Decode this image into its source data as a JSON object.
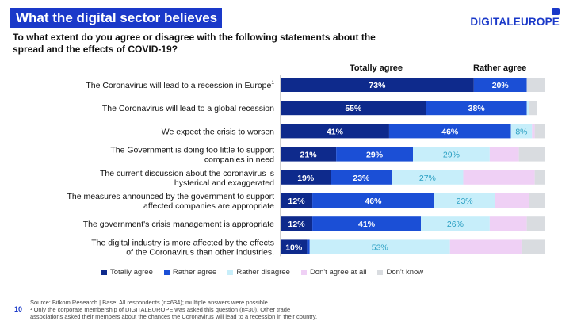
{
  "header": {
    "title": "What the digital sector believes",
    "logo_text": "DIGITALEUROPE",
    "question": "To what extent do you agree or disagree with the following statements about the spread and the effects of COVID-19?"
  },
  "column_headers": {
    "totally_agree": "Totally agree",
    "rather_agree": "Rather agree"
  },
  "colors": {
    "title_bg": "#1a39c9",
    "Totally agree": "#0e2a8c",
    "Rather agree": "#1b4fd6",
    "Rather disagree": "#c7eefa",
    "Don't agree at all": "#efd0f5",
    "Don't know": "#d9dce0"
  },
  "chart_data": {
    "type": "bar",
    "orientation": "horizontal",
    "stacked": true,
    "xlim": [
      0,
      100
    ],
    "categories": [
      "The Coronavirus will lead to a recession in Europe",
      "The Coronavirus will lead to a global recession",
      "We expect the crisis to worsen",
      "The Government is doing too little to support companies in need",
      "The current discussion about the coronavirus is hysterical and exaggerated",
      "The measures announced by the government to support affected companies are appropriate",
      "The government's crisis management is appropriate",
      "The digital industry is more affected by the effects of the Coronavirus than other industries."
    ],
    "category_superscripts": [
      "1",
      "",
      "",
      "",
      "",
      "",
      "",
      ""
    ],
    "series": [
      {
        "name": "Totally agree",
        "values": [
          73,
          55,
          41,
          21,
          19,
          12,
          12,
          10
        ],
        "labels": [
          "73%",
          "55%",
          "41%",
          "21%",
          "19%",
          "12%",
          "12%",
          "10%"
        ]
      },
      {
        "name": "Rather agree",
        "values": [
          20,
          38,
          46,
          29,
          23,
          46,
          41,
          1
        ],
        "labels": [
          "20%",
          "38%",
          "46%",
          "29%",
          "23%",
          "46%",
          "41%",
          ""
        ]
      },
      {
        "name": "Rather disagree",
        "values": [
          0,
          1,
          8,
          29,
          27,
          23,
          26,
          53
        ],
        "labels": [
          "",
          "",
          "8%",
          "29%",
          "27%",
          "23%",
          "26%",
          "53%"
        ]
      },
      {
        "name": "Don't agree at all",
        "values": [
          0,
          0,
          1,
          11,
          27,
          13,
          14,
          27
        ],
        "labels": [
          "",
          "",
          "",
          "",
          "",
          "",
          "",
          ""
        ]
      },
      {
        "name": "Don't know",
        "values": [
          7,
          3,
          4,
          10,
          4,
          6,
          7,
          9
        ],
        "labels": [
          "",
          "",
          "",
          "",
          "",
          "",
          "",
          ""
        ]
      }
    ]
  },
  "footer": {
    "page_number": "10",
    "source_line": "Source: Bitkom Research | Base: All respondents (n=634); multiple answers were possible",
    "note_line1": "¹ Only the corporate membership of DIGITALEUROPE was asked this question (n=30). Other trade",
    "note_line2": "associations asked their members about the chances the Coronavirus will lead to a recession in their country."
  }
}
